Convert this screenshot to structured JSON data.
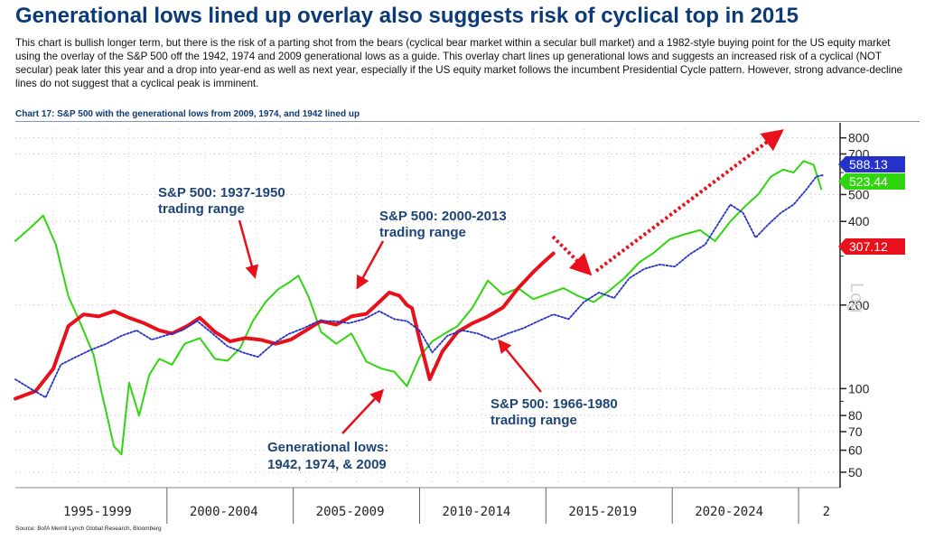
{
  "header": {
    "title": "Generational lows lined up overlay also suggests risk of cyclical top in 2015",
    "body": "This chart is bullish longer term, but there is the risk of a parting shot from the bears (cyclical bear market within a secular bull market) and a 1982-style buying point for the US equity market using the overlay of the S&P 500 off the 1942, 1974 and 2009 generational lows as a guide. This overlay chart lines up generational lows and suggests an increased risk of a cyclical (NOT secular) peak later this year and a drop into year-end as well as next year, especially if the US equity market follows the incumbent Presidential Cycle pattern. However, strong advance-decline lines do not suggest that a cyclical peak is imminent."
  },
  "chart_caption": "Chart 17: S&P 500 with the generational lows from 2009, 1974, and 1942 lined up",
  "source": "Source: BofA Merrill Lynch Global Research, Bloomberg",
  "colors": {
    "red": "#e8101a",
    "green": "#2fd60f",
    "blue": "#2432c8",
    "title": "#0b3a78",
    "annotation": "#1e4576"
  },
  "chart_data": {
    "type": "line",
    "y_scale": "log",
    "ylim": [
      45,
      860
    ],
    "xlim": [
      1993.5,
      2026
    ],
    "y_ticks": [
      "800",
      "700",
      "500",
      "400",
      "200",
      "100",
      "80",
      "70",
      "60",
      "50"
    ],
    "y_tick_values": [
      800,
      700,
      500,
      400,
      200,
      100,
      80,
      70,
      60,
      50
    ],
    "x_period_labels": [
      "1995-1999",
      "2000-2004",
      "2005-2009",
      "2010-2014",
      "2015-2019",
      "2020-2024",
      "2"
    ],
    "x_period_centers": [
      1996.75,
      2001.75,
      2006.75,
      2011.75,
      2016.75,
      2021.75,
      2025.6
    ],
    "x_period_separators": [
      1999.5,
      2004.5,
      2009.5,
      2014.5,
      2019.5,
      2024.5
    ],
    "y_axis_label": "Log",
    "grid": true,
    "series": [
      {
        "color": "#e8101a",
        "style": "solid",
        "last_value_label": "307.12",
        "last_value": 307.12,
        "x": [
          1993.5,
          1994.3,
          1995.0,
          1995.6,
          1996.2,
          1996.8,
          1997.4,
          1998.0,
          1998.6,
          1999.2,
          1999.7,
          2000.3,
          2000.8,
          2001.4,
          2002.0,
          2002.6,
          2003.2,
          2003.8,
          2004.4,
          2005.0,
          2005.6,
          2006.2,
          2006.8,
          2007.4,
          2007.9,
          2008.3,
          2008.7,
          2009.0,
          2009.2,
          2009.5,
          2009.9,
          2010.4,
          2011.0,
          2011.6,
          2012.2,
          2012.8,
          2013.4,
          2014.0,
          2014.4,
          2014.8
        ],
        "values": [
          92,
          98,
          118,
          168,
          185,
          182,
          190,
          180,
          172,
          162,
          158,
          168,
          180,
          160,
          148,
          152,
          150,
          145,
          150,
          162,
          175,
          170,
          182,
          186,
          205,
          222,
          216,
          200,
          195,
          150,
          108,
          136,
          160,
          172,
          182,
          196,
          230,
          263,
          285,
          307
        ]
      },
      {
        "color": "#2fd60f",
        "style": "solid",
        "last_value_label": "523.44",
        "last_value": 523.44,
        "x": [
          1993.5,
          1994.1,
          1994.6,
          1995.1,
          1995.6,
          1996.1,
          1996.6,
          1996.9,
          1997.1,
          1997.4,
          1997.7,
          1998.0,
          1998.4,
          1998.8,
          1999.2,
          1999.7,
          2000.2,
          2000.8,
          2001.4,
          2001.9,
          2002.4,
          2002.9,
          2003.4,
          2003.9,
          2004.3,
          2004.7,
          2005.1,
          2005.6,
          2006.2,
          2006.8,
          2007.4,
          2008.0,
          2008.5,
          2009.0,
          2009.5,
          2010.0,
          2010.5,
          2011.0,
          2011.6,
          2012.2,
          2012.8,
          2013.4,
          2014.0,
          2014.6,
          2015.2,
          2015.8,
          2016.4,
          2017.0,
          2017.6,
          2018.2,
          2018.8,
          2019.4,
          2020.0,
          2020.6,
          2021.2,
          2021.8,
          2022.4,
          2022.9,
          2023.4,
          2023.9,
          2024.3,
          2024.7,
          2025.1,
          2025.4
        ],
        "values": [
          340,
          380,
          420,
          330,
          215,
          170,
          132,
          98,
          82,
          62,
          58,
          105,
          80,
          112,
          128,
          122,
          145,
          152,
          128,
          126,
          140,
          175,
          205,
          228,
          240,
          255,
          215,
          160,
          145,
          158,
          125,
          118,
          115,
          102,
          130,
          148,
          158,
          168,
          196,
          245,
          218,
          230,
          210,
          220,
          230,
          215,
          205,
          225,
          250,
          285,
          310,
          345,
          360,
          372,
          340,
          400,
          455,
          500,
          580,
          615,
          600,
          660,
          640,
          523
        ]
      },
      {
        "color": "#2432c8",
        "style": "dotted",
        "last_value_label": "588.13",
        "last_value": 588.13,
        "x": [
          1993.5,
          1994.1,
          1994.7,
          1995.3,
          1995.9,
          1996.5,
          1997.1,
          1997.7,
          1998.3,
          1998.9,
          1999.5,
          2000.1,
          2000.7,
          2001.3,
          2001.9,
          2002.5,
          2003.1,
          2003.7,
          2004.3,
          2004.9,
          2005.5,
          2006.1,
          2006.7,
          2007.3,
          2007.9,
          2008.5,
          2009.0,
          2009.5,
          2010.0,
          2010.6,
          2011.2,
          2011.8,
          2012.4,
          2013.0,
          2013.6,
          2014.2,
          2014.8,
          2015.4,
          2016.0,
          2016.6,
          2017.2,
          2017.8,
          2018.4,
          2019.0,
          2019.6,
          2020.2,
          2020.8,
          2021.3,
          2021.8,
          2022.3,
          2022.8,
          2023.3,
          2023.8,
          2024.3,
          2024.8,
          2025.2,
          2025.5
        ],
        "values": [
          108,
          100,
          93,
          122,
          130,
          138,
          145,
          155,
          162,
          150,
          156,
          162,
          175,
          158,
          142,
          135,
          130,
          145,
          157,
          165,
          175,
          175,
          172,
          178,
          190,
          178,
          175,
          162,
          135,
          155,
          162,
          158,
          150,
          158,
          165,
          175,
          185,
          178,
          205,
          222,
          212,
          250,
          270,
          280,
          275,
          305,
          330,
          390,
          460,
          430,
          350,
          390,
          430,
          460,
          520,
          580,
          588
        ]
      }
    ],
    "annotations": [
      {
        "lines": [
          "S&P 500: 1937-1950",
          "trading range"
        ]
      },
      {
        "lines": [
          "S&P 500: 2000-2013",
          "trading range"
        ]
      },
      {
        "lines": [
          "S&P 500: 1966-1980",
          "trading range"
        ]
      },
      {
        "lines": [
          "Generational lows:",
          "1942, 1974, & 2009"
        ]
      }
    ]
  }
}
